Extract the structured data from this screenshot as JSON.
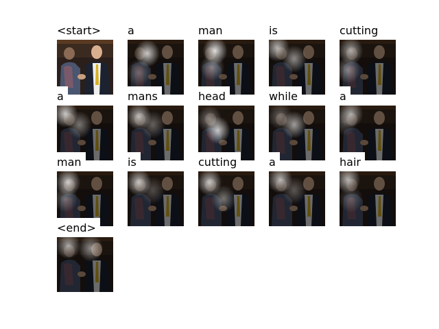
{
  "figure": {
    "frames": [
      {
        "word": "<start>",
        "mode": "original",
        "focus": []
      },
      {
        "word": "a",
        "mode": "attention",
        "focus": [
          [
            0.35,
            0.25,
            0.9
          ],
          [
            0.2,
            0.6,
            0.35
          ]
        ]
      },
      {
        "word": "man",
        "mode": "attention",
        "focus": [
          [
            0.3,
            0.2,
            1.0
          ],
          [
            0.25,
            0.5,
            0.5
          ]
        ]
      },
      {
        "word": "is",
        "mode": "attention",
        "focus": [
          [
            0.15,
            0.15,
            0.8
          ],
          [
            0.45,
            0.35,
            0.6
          ]
        ]
      },
      {
        "word": "cutting",
        "mode": "attention",
        "focus": [
          [
            0.2,
            0.2,
            0.7
          ],
          [
            0.15,
            0.55,
            0.5
          ]
        ]
      },
      {
        "word": "a",
        "mode": "attention",
        "focus": [
          [
            0.15,
            0.15,
            0.9
          ],
          [
            0.4,
            0.35,
            0.5
          ]
        ]
      },
      {
        "word": "mans",
        "mode": "attention",
        "focus": [
          [
            0.2,
            0.2,
            0.8
          ],
          [
            0.45,
            0.35,
            0.4
          ]
        ]
      },
      {
        "word": "head",
        "mode": "attention",
        "focus": [
          [
            0.35,
            0.45,
            0.9
          ],
          [
            0.2,
            0.25,
            0.5
          ]
        ]
      },
      {
        "word": "while",
        "mode": "attention",
        "focus": [
          [
            0.45,
            0.35,
            0.7
          ],
          [
            0.2,
            0.2,
            0.4
          ]
        ]
      },
      {
        "word": "a",
        "mode": "attention",
        "focus": [
          [
            0.2,
            0.15,
            0.7
          ],
          [
            0.1,
            0.3,
            0.3
          ]
        ]
      },
      {
        "word": "man",
        "mode": "attention",
        "focus": [
          [
            0.2,
            0.2,
            0.9
          ],
          [
            0.15,
            0.5,
            0.4
          ]
        ]
      },
      {
        "word": "is",
        "mode": "attention",
        "focus": [
          [
            0.2,
            0.2,
            0.85
          ],
          [
            0.45,
            0.35,
            0.3
          ]
        ]
      },
      {
        "word": "cutting",
        "mode": "attention",
        "focus": [
          [
            0.2,
            0.2,
            0.85
          ],
          [
            0.45,
            0.5,
            0.5
          ]
        ]
      },
      {
        "word": "a",
        "mode": "attention",
        "focus": [
          [
            0.2,
            0.15,
            0.8
          ],
          [
            0.45,
            0.35,
            0.35
          ]
        ]
      },
      {
        "word": "hair",
        "mode": "attention",
        "focus": [
          [
            0.15,
            0.15,
            0.8
          ],
          [
            0.2,
            0.5,
            0.3
          ]
        ]
      },
      {
        "word": "<end>",
        "mode": "attention",
        "focus": [
          [
            0.2,
            0.15,
            0.7
          ],
          [
            0.6,
            0.2,
            0.6
          ]
        ]
      }
    ]
  }
}
